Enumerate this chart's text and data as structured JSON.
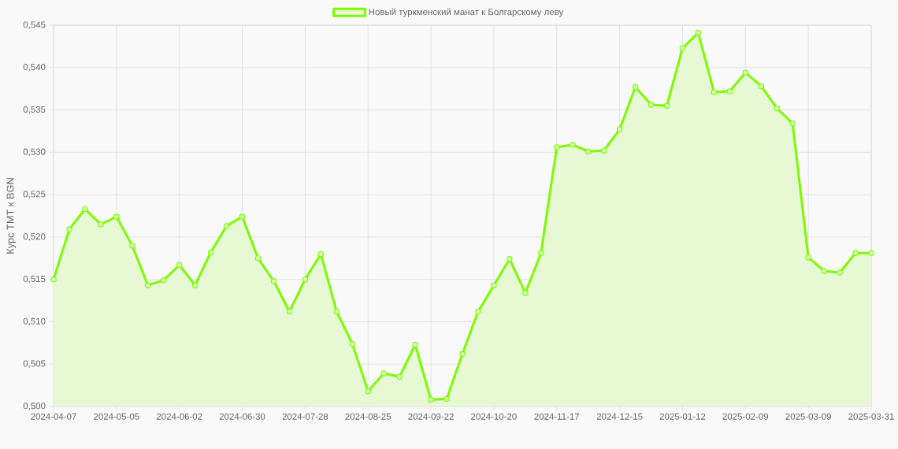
{
  "chart_data": {
    "type": "area",
    "categories": [
      "2024-04-07",
      null,
      null,
      null,
      "2024-05-05",
      null,
      null,
      null,
      "2024-06-02",
      null,
      null,
      null,
      "2024-06-30",
      null,
      null,
      null,
      "2024-07-28",
      null,
      null,
      null,
      "2024-08-25",
      null,
      null,
      null,
      "2024-09-22",
      null,
      null,
      null,
      "2024-10-20",
      null,
      null,
      null,
      "2024-11-17",
      null,
      null,
      null,
      "2024-12-15",
      null,
      null,
      null,
      "2025-01-12",
      null,
      null,
      null,
      "2025-02-09",
      null,
      null,
      null,
      "2025-03-09",
      null,
      null,
      null,
      "2025-03-31"
    ],
    "series": [
      {
        "name": "Новый туркменский манат к Болгарскому леву",
        "color": "#7cfc00",
        "values": [
          0.515,
          0.5209,
          0.5233,
          0.5215,
          0.5224,
          0.519,
          0.5143,
          0.5149,
          0.5167,
          0.5143,
          0.5182,
          0.5213,
          0.5224,
          0.5175,
          0.5148,
          0.5112,
          0.515,
          0.518,
          0.5112,
          0.5074,
          0.5018,
          0.5039,
          0.5035,
          0.5073,
          0.5008,
          0.5009,
          0.5062,
          0.5112,
          0.5143,
          0.5174,
          0.5134,
          0.5181,
          0.5306,
          0.5309,
          0.5301,
          0.5302,
          0.5327,
          0.5377,
          0.5356,
          0.5355,
          0.5423,
          0.5441,
          0.5371,
          0.5372,
          0.5394,
          0.5378,
          0.5352,
          0.5334,
          0.5176,
          0.516,
          0.5158,
          0.5181,
          0.5181
        ]
      }
    ],
    "ylabel": "Курс ТМТ к BGN",
    "ylim": [
      0.5,
      0.545
    ],
    "yticks": [
      {
        "value": 0.5,
        "label": "0,500"
      },
      {
        "value": 0.505,
        "label": "0,505"
      },
      {
        "value": 0.51,
        "label": "0,510"
      },
      {
        "value": 0.515,
        "label": "0,515"
      },
      {
        "value": 0.52,
        "label": "0,520"
      },
      {
        "value": 0.525,
        "label": "0,525"
      },
      {
        "value": 0.53,
        "label": "0,530"
      },
      {
        "value": 0.535,
        "label": "0,535"
      },
      {
        "value": 0.54,
        "label": "0,540"
      },
      {
        "value": 0.545,
        "label": "0,545"
      }
    ],
    "grid": true,
    "legend": "top",
    "marker": "circle"
  }
}
